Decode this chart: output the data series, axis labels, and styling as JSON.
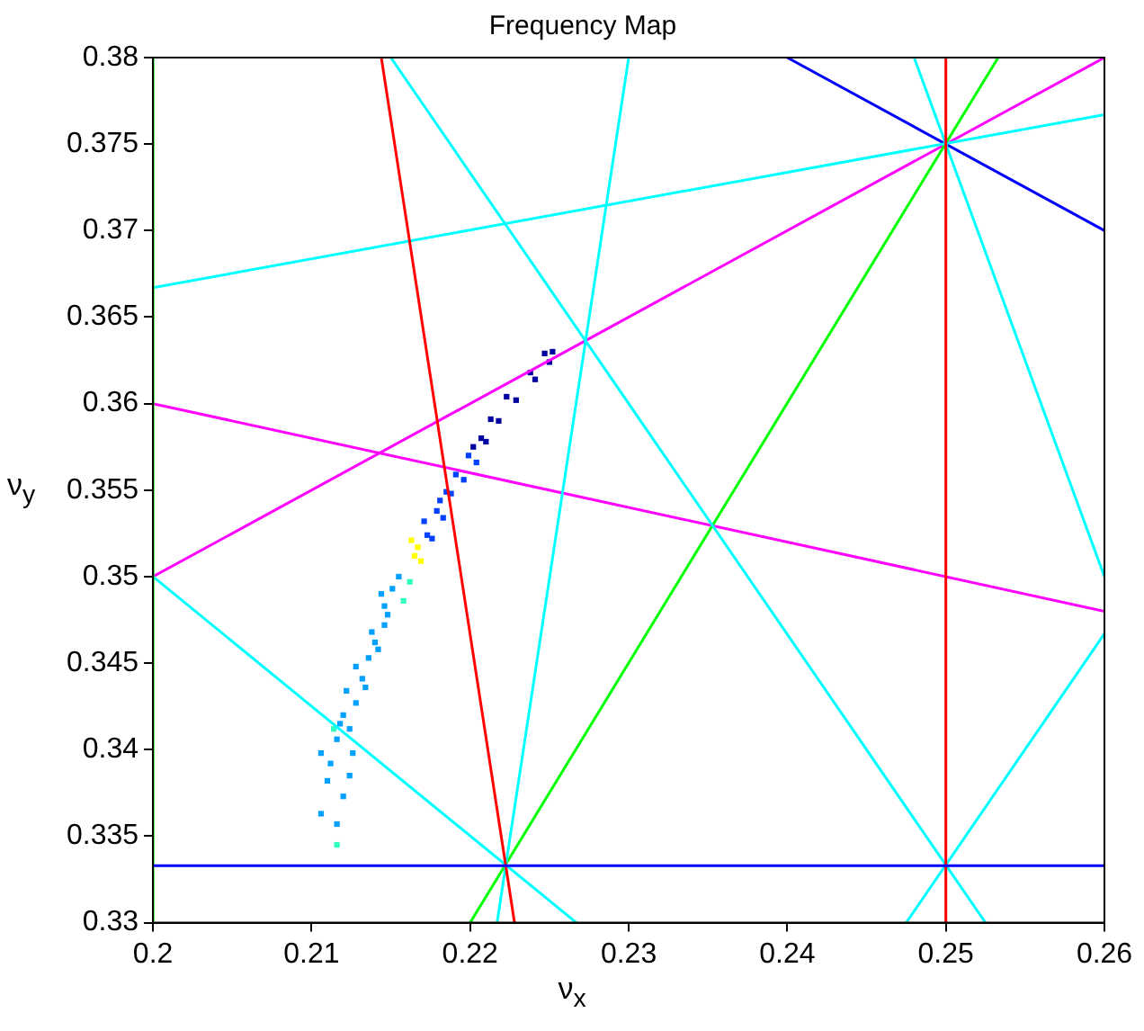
{
  "chart_data": {
    "type": "scatter",
    "title": "Frequency Map",
    "xlabel": "ν$_{x}$",
    "ylabel": "ν$_{y}$",
    "xlim": [
      0.2,
      0.26
    ],
    "ylim": [
      0.33,
      0.38
    ],
    "xticks": [
      0.2,
      0.21,
      0.22,
      0.23,
      0.24,
      0.25,
      0.26
    ],
    "yticks": [
      0.33,
      0.335,
      0.34,
      0.345,
      0.35,
      0.355,
      0.36,
      0.365,
      0.37,
      0.375,
      0.38
    ],
    "grid": false,
    "legend": false,
    "marker": "square",
    "series": [
      {
        "type": "line",
        "marker": "none",
        "line_style": "solid",
        "color": "#0000ff",
        "x": [
          0.2,
          0.26
        ],
        "values": [
          0.3333,
          0.3333
        ]
      },
      {
        "type": "line",
        "marker": "none",
        "line_style": "solid",
        "color": "#00ff00",
        "x": [
          0.2,
          0.2
        ],
        "values": [
          0.33,
          0.38
        ]
      },
      {
        "type": "line",
        "marker": "none",
        "line_style": "solid",
        "color": "#ff0000",
        "x": [
          0.25,
          0.25
        ],
        "values": [
          0.33,
          0.38
        ]
      },
      {
        "type": "line",
        "marker": "none",
        "line_style": "solid",
        "color": "#ff0000",
        "x": [
          0.2144,
          0.2228
        ],
        "values": [
          0.38,
          0.33
        ]
      },
      {
        "type": "line",
        "marker": "none",
        "line_style": "solid",
        "color": "#00ffff",
        "x": [
          0.2217,
          0.23
        ],
        "values": [
          0.33,
          0.38
        ]
      },
      {
        "type": "line",
        "marker": "none",
        "line_style": "solid",
        "color": "#00ffff",
        "x": [
          0.2,
          0.2267
        ],
        "values": [
          0.35,
          0.33
        ]
      },
      {
        "type": "line",
        "marker": "none",
        "line_style": "solid",
        "color": "#00ffff",
        "x": [
          0.215,
          0.2525
        ],
        "values": [
          0.38,
          0.33
        ]
      },
      {
        "type": "line",
        "marker": "none",
        "line_style": "solid",
        "color": "#00ffff",
        "x": [
          0.2475,
          0.26
        ],
        "values": [
          0.33,
          0.3467
        ]
      },
      {
        "type": "line",
        "marker": "none",
        "line_style": "solid",
        "color": "#00ffff",
        "x": [
          0.248,
          0.26
        ],
        "values": [
          0.38,
          0.35
        ]
      },
      {
        "type": "line",
        "marker": "none",
        "line_style": "solid",
        "color": "#00ffff",
        "x": [
          0.2,
          0.26
        ],
        "values": [
          0.3667,
          0.3767
        ]
      },
      {
        "type": "line",
        "marker": "none",
        "line_style": "solid",
        "color": "#00ff00",
        "x": [
          0.22,
          0.2533
        ],
        "values": [
          0.33,
          0.38
        ]
      },
      {
        "type": "line",
        "marker": "none",
        "line_style": "solid",
        "color": "#ff00ff",
        "x": [
          0.2,
          0.26
        ],
        "values": [
          0.35,
          0.38
        ]
      },
      {
        "type": "line",
        "marker": "none",
        "line_style": "solid",
        "color": "#ff00ff",
        "x": [
          0.2,
          0.26
        ],
        "values": [
          0.36,
          0.348
        ]
      },
      {
        "type": "line",
        "marker": "none",
        "line_style": "solid",
        "color": "#0000ff",
        "x": [
          0.24,
          0.26
        ],
        "values": [
          0.38,
          0.37
        ]
      },
      {
        "color": "#00a0ff",
        "x": [
          0.2106,
          0.2116,
          0.212,
          0.211,
          0.2124,
          0.2106,
          0.2126,
          0.2116,
          0.212,
          0.2128,
          0.2122,
          0.2132,
          0.2136,
          0.2128,
          0.214,
          0.2146,
          0.2138,
          0.2146,
          0.2151,
          0.2144,
          0.2155,
          0.2112,
          0.2118,
          0.2124,
          0.2134,
          0.2142,
          0.2148
        ],
        "values": [
          0.3363,
          0.3357,
          0.3373,
          0.3382,
          0.3385,
          0.3398,
          0.3398,
          0.3406,
          0.342,
          0.3427,
          0.3434,
          0.3441,
          0.3453,
          0.3448,
          0.3462,
          0.3472,
          0.3468,
          0.3483,
          0.3493,
          0.349,
          0.35,
          0.3392,
          0.3415,
          0.3412,
          0.3436,
          0.3458,
          0.3478
        ]
      },
      {
        "color": "#30ffc0",
        "x": [
          0.2116,
          0.2114,
          0.2158,
          0.2162
        ],
        "values": [
          0.3345,
          0.3412,
          0.3486,
          0.3497
        ]
      },
      {
        "color": "#ffff00",
        "x": [
          0.2167,
          0.2169,
          0.2165,
          0.2163
        ],
        "values": [
          0.3517,
          0.3509,
          0.3512,
          0.3521
        ]
      },
      {
        "color": "#0040ff",
        "x": [
          0.2173,
          0.2179,
          0.2185,
          0.2191,
          0.2199,
          0.2176,
          0.2183,
          0.2188,
          0.2196,
          0.2204,
          0.2171,
          0.2181
        ],
        "values": [
          0.3524,
          0.3538,
          0.3549,
          0.3559,
          0.357,
          0.3522,
          0.3534,
          0.3548,
          0.3556,
          0.3566,
          0.3532,
          0.3544
        ]
      },
      {
        "color": "#0000a0",
        "x": [
          0.2207,
          0.2213,
          0.2223,
          0.2238,
          0.2247,
          0.2252,
          0.221,
          0.2218,
          0.2229,
          0.2241,
          0.225,
          0.2202
        ],
        "values": [
          0.358,
          0.3591,
          0.3604,
          0.3618,
          0.3629,
          0.363,
          0.3578,
          0.359,
          0.3602,
          0.3614,
          0.3624,
          0.3575
        ]
      }
    ]
  }
}
